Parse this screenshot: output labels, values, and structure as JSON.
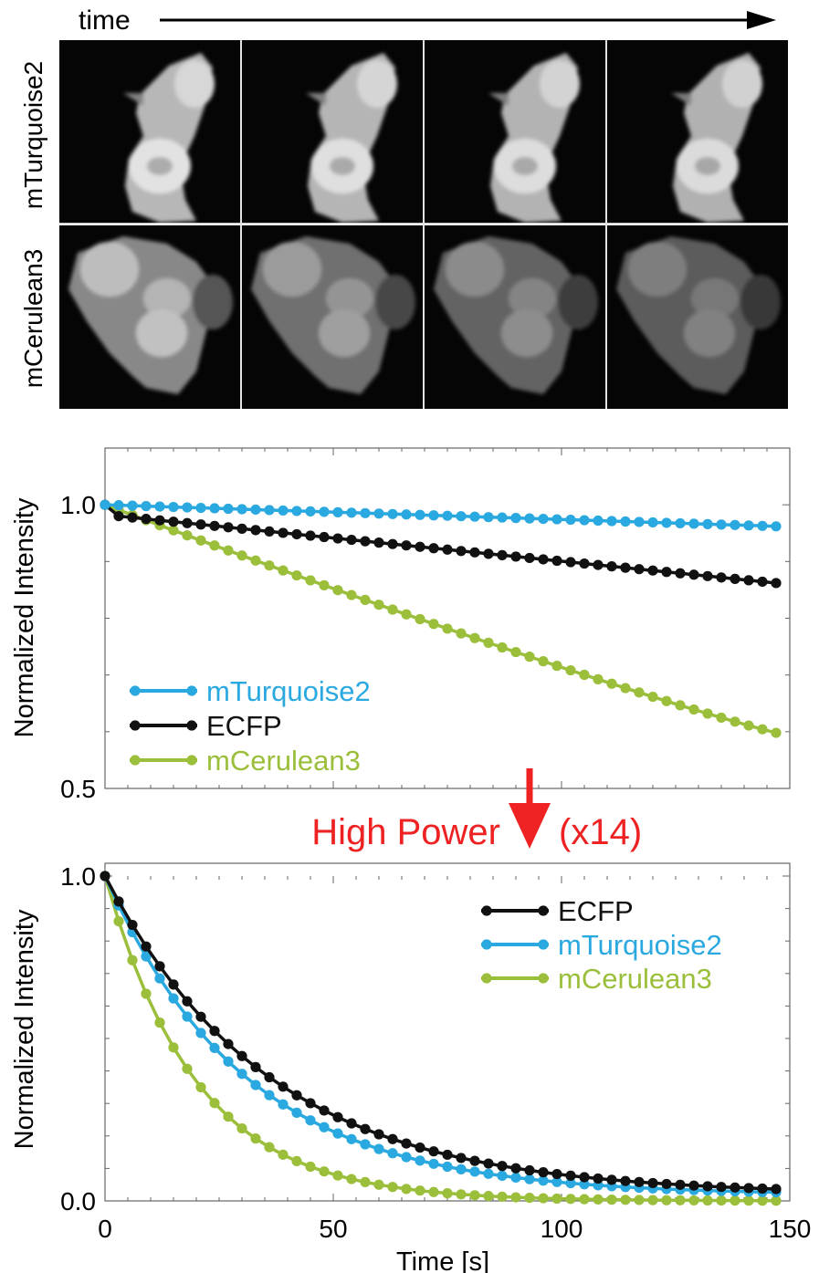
{
  "panel_a": {
    "time_label": "time",
    "rows": [
      {
        "label": "mTurquoise2",
        "brightness": [
          1.0,
          0.99,
          0.98,
          0.97
        ]
      },
      {
        "label": "mCerulean3",
        "brightness": [
          0.9,
          0.74,
          0.66,
          0.6
        ]
      }
    ]
  },
  "annotation": {
    "text": "High Power",
    "factor": "(x14)",
    "color": "#ee2222"
  },
  "colors": {
    "mTurquoise2": "#2aa9e0",
    "ECFP": "#111111",
    "mCerulean3": "#9bbf3a"
  },
  "chart_data": [
    {
      "type": "line",
      "ylabel": "Normalized Intensity",
      "xlabel": "",
      "xlim": [
        0,
        150
      ],
      "ylim": [
        0.5,
        1.1
      ],
      "yticks": [
        0.5,
        1.0
      ],
      "ytick_labels": [
        "0.5",
        "1.0"
      ],
      "legend_placement": "bottom-left",
      "legend_order": [
        "mTurquoise2",
        "ECFP",
        "mCerulean3"
      ],
      "series": [
        {
          "name": "mTurquoise2",
          "color": "#2aa9e0",
          "x_start": 0,
          "x_step": 3,
          "x_end": 147,
          "y_start": 1.0,
          "y_end": 0.962,
          "curve": "linear"
        },
        {
          "name": "ECFP",
          "color": "#111111",
          "x_start": 0,
          "x_step": 3,
          "x_end": 147,
          "y_start": 1.0,
          "y_end": 0.862,
          "curve": "fast-drop-then-linear",
          "y_after_first": 0.98
        },
        {
          "name": "mCerulean3",
          "color": "#9bbf3a",
          "x_start": 0,
          "x_step": 3,
          "x_end": 147,
          "y_start": 1.0,
          "y_end": 0.598,
          "curve": "decelerating"
        }
      ]
    },
    {
      "type": "line",
      "ylabel": "Normalized Intensity",
      "xlabel": "Time [s]",
      "xlim": [
        0,
        150
      ],
      "ylim": [
        0,
        1.0
      ],
      "xticks": [
        0,
        50,
        100,
        150
      ],
      "xtick_labels": [
        "0",
        "50",
        "100",
        "150"
      ],
      "yticks": [
        0,
        1.0
      ],
      "ytick_labels": [
        "0.0",
        "1.0"
      ],
      "legend_placement": "top-right",
      "legend_order": [
        "ECFP",
        "mTurquoise2",
        "mCerulean3"
      ],
      "series": [
        {
          "name": "ECFP",
          "color": "#111111",
          "x_start": 0,
          "x_step": 3,
          "x_end": 147,
          "y_start": 1.0,
          "tau": 36,
          "floor": 0.02
        },
        {
          "name": "mTurquoise2",
          "color": "#2aa9e0",
          "x_start": 0,
          "x_step": 3,
          "x_end": 147,
          "y_start": 1.0,
          "tau": 31,
          "floor": 0.018
        },
        {
          "name": "mCerulean3",
          "color": "#9bbf3a",
          "x_start": 0,
          "x_step": 3,
          "x_end": 147,
          "y_start": 1.0,
          "tau": 20,
          "floor": 0.0
        }
      ]
    }
  ]
}
